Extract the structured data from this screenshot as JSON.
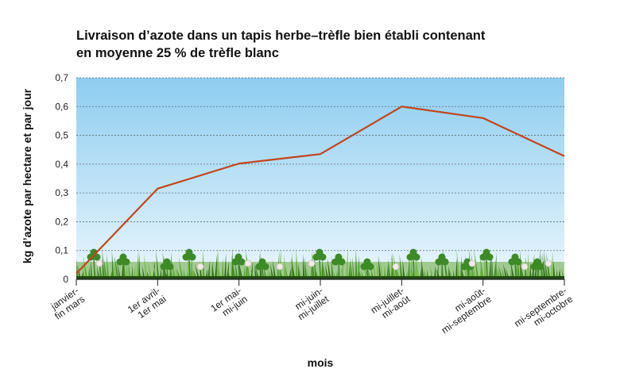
{
  "chart_data": {
    "type": "line",
    "title": [
      "Livraison d’azote dans un tapis herbe–trèfle bien établi contenant",
      "en moyenne 25 % de trèfle blanc"
    ],
    "xlabel": "mois",
    "ylabel": "kg d’azote par hectare et par jour",
    "categories": [
      [
        "janvier-",
        "fin mars"
      ],
      [
        "1er avril-",
        "1er mai"
      ],
      [
        "1er mai-",
        "mi-juin"
      ],
      [
        "mi-juin-",
        "mi-juillet"
      ],
      [
        "mi-juillet-",
        "mi-août"
      ],
      [
        "mi-août-",
        "mi-septembre"
      ],
      [
        "mi-septembre-",
        "mi-octobre"
      ]
    ],
    "series": [
      {
        "values": [
          0.02,
          0.315,
          0.402,
          0.435,
          0.6,
          0.56,
          0.428
        ]
      }
    ],
    "yticks": [
      "0",
      "0,1",
      "0,2",
      "0,3",
      "0,4",
      "0,5",
      "0,6",
      "0,7"
    ],
    "ylim": [
      0,
      0.7
    ],
    "grid": true,
    "line_color": "#c0461b",
    "sky_top": "#8ecdf0",
    "sky_bottom": "#eaf6fd",
    "grass_color": "#4a8f2a"
  }
}
